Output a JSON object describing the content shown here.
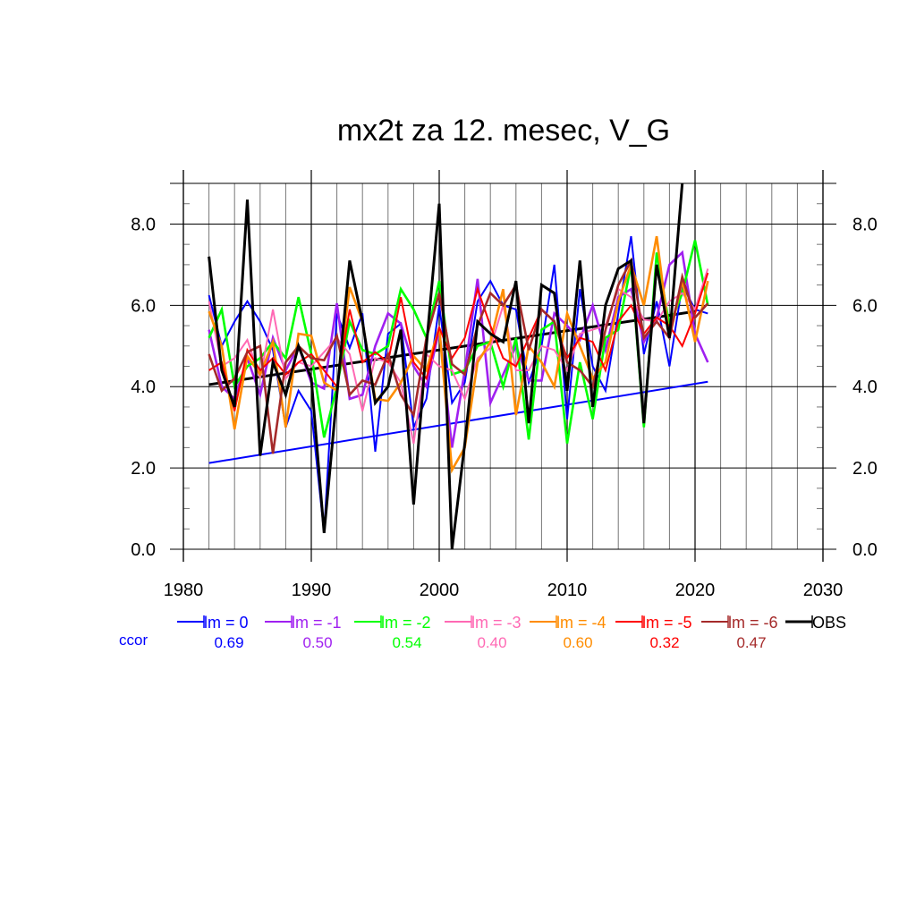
{
  "chart_data": {
    "type": "line",
    "title": "mx2t za 12. mesec, V_G",
    "xlabel": "",
    "ylabel": "",
    "xlim": [
      1980,
      2030
    ],
    "ylim": [
      0,
      9
    ],
    "x_ticks": [
      "1980",
      "1990",
      "2000",
      "2010",
      "2020",
      "2030"
    ],
    "y_ticks_left": [
      "0.0",
      "2.0",
      "4.0",
      "6.0",
      "8.0"
    ],
    "y_ticks_right": [
      "0.0",
      "2.0",
      "4.0",
      "6.0",
      "8.0"
    ],
    "grid": true,
    "legend_position": "bottom",
    "x": [
      1982,
      1983,
      1984,
      1985,
      1986,
      1987,
      1988,
      1989,
      1990,
      1991,
      1992,
      1993,
      1994,
      1995,
      1996,
      1997,
      1998,
      1999,
      2000,
      2001,
      2002,
      2003,
      2004,
      2005,
      2006,
      2007,
      2008,
      2009,
      2010,
      2011,
      2012,
      2013,
      2014,
      2015,
      2016,
      2017,
      2018,
      2019,
      2020,
      2021
    ],
    "series": [
      {
        "name": "lm = 0",
        "color": "#0000ff",
        "ccor": "0.69",
        "values": [
          6.25,
          5.0,
          5.6,
          6.1,
          5.6,
          4.9,
          3.0,
          3.9,
          3.4,
          0.4,
          5.8,
          4.95,
          5.8,
          2.4,
          5.3,
          5.55,
          3.0,
          3.7,
          6.0,
          3.6,
          4.1,
          6.1,
          6.6,
          6.0,
          5.9,
          4.1,
          5.0,
          7.0,
          3.2,
          6.4,
          4.5,
          3.9,
          5.8,
          7.7,
          4.8,
          6.1,
          4.5,
          6.5,
          5.9,
          5.8
        ]
      },
      {
        "name": "lm = -1",
        "color": "#a020f0",
        "ccor": "0.50",
        "values": [
          5.4,
          4.0,
          3.7,
          4.7,
          3.8,
          5.2,
          4.4,
          5.0,
          4.1,
          3.95,
          6.05,
          3.7,
          3.8,
          5.0,
          5.8,
          5.55,
          4.5,
          4.0,
          5.4,
          2.5,
          4.4,
          6.65,
          3.6,
          4.3,
          5.0,
          4.15,
          4.15,
          5.8,
          5.5,
          5.15,
          6.0,
          4.9,
          6.2,
          6.4,
          5.1,
          5.7,
          7.0,
          7.3,
          5.3,
          4.6
        ]
      },
      {
        "name": "lm = -2",
        "color": "#00ff00",
        "ccor": "0.54",
        "values": [
          5.2,
          5.9,
          4.0,
          4.5,
          4.7,
          5.1,
          4.7,
          6.2,
          4.8,
          2.75,
          4.0,
          5.6,
          4.9,
          4.8,
          5.0,
          6.4,
          5.9,
          5.2,
          6.6,
          4.3,
          4.4,
          5.0,
          5.1,
          4.0,
          5.2,
          2.7,
          5.4,
          5.6,
          2.6,
          4.6,
          3.2,
          5.2,
          5.4,
          7.0,
          3.0,
          7.3,
          5.5,
          6.3,
          7.6,
          6.0
        ]
      },
      {
        "name": "lm = -3",
        "color": "#ff69b4",
        "ccor": "0.40",
        "values": [
          6.1,
          4.5,
          4.7,
          5.15,
          4.2,
          5.9,
          4.2,
          4.6,
          4.5,
          4.85,
          5.2,
          4.8,
          3.4,
          4.7,
          4.6,
          4.1,
          2.6,
          4.8,
          4.5,
          4.4,
          3.7,
          4.7,
          4.95,
          6.0,
          4.4,
          4.4,
          5.0,
          4.9,
          4.4,
          5.3,
          5.4,
          5.5,
          6.4,
          6.2,
          5.65,
          5.6,
          6.1,
          6.3,
          5.9,
          6.9
        ]
      },
      {
        "name": "lm = -4",
        "color": "#ff8c00",
        "ccor": "0.60",
        "values": [
          5.85,
          5.0,
          2.95,
          4.75,
          4.3,
          5.1,
          3.0,
          5.3,
          5.25,
          4.1,
          3.9,
          6.45,
          5.6,
          3.7,
          3.65,
          4.1,
          4.75,
          4.4,
          5.45,
          1.95,
          2.5,
          4.6,
          5.1,
          6.4,
          3.3,
          5.0,
          4.6,
          4.0,
          5.8,
          5.0,
          4.2,
          4.6,
          6.1,
          7.0,
          6.0,
          7.7,
          5.2,
          6.6,
          5.1,
          6.6
        ]
      },
      {
        "name": "lm = -5",
        "color": "#ff0000",
        "ccor": "0.32",
        "values": [
          4.4,
          4.6,
          3.4,
          4.9,
          4.4,
          4.7,
          4.3,
          4.6,
          4.8,
          4.4,
          4.0,
          5.9,
          4.6,
          4.85,
          4.6,
          6.2,
          4.6,
          4.2,
          5.45,
          4.7,
          5.2,
          6.4,
          5.5,
          4.7,
          4.5,
          5.2,
          5.9,
          5.6,
          4.7,
          5.2,
          5.1,
          4.4,
          5.6,
          6.0,
          5.3,
          5.7,
          5.5,
          5.0,
          5.8,
          6.8
        ]
      },
      {
        "name": "lm = -6",
        "color": "#a52a2a",
        "ccor": "0.47",
        "values": [
          4.8,
          3.9,
          4.2,
          4.85,
          5.0,
          2.35,
          4.6,
          5.0,
          4.7,
          4.65,
          5.25,
          3.8,
          4.15,
          4.05,
          4.8,
          3.8,
          3.3,
          5.2,
          6.3,
          4.55,
          4.3,
          5.5,
          6.3,
          6.0,
          6.5,
          4.9,
          5.9,
          5.6,
          4.6,
          4.4,
          4.0,
          5.4,
          6.5,
          7.1,
          5.2,
          5.6,
          5.2,
          6.7,
          5.7,
          6.05
        ]
      },
      {
        "name": "OBS",
        "color": "#000000",
        "ccor": "",
        "values": [
          7.2,
          4.4,
          3.5,
          8.6,
          2.3,
          4.6,
          3.8,
          5.0,
          4.2,
          0.4,
          3.8,
          7.1,
          5.6,
          3.6,
          4.0,
          5.4,
          1.1,
          5.0,
          8.5,
          0.0,
          2.6,
          5.6,
          5.3,
          5.1,
          6.6,
          3.1,
          6.5,
          6.3,
          3.9,
          7.1,
          3.5,
          6.0,
          6.9,
          7.1,
          3.1,
          7.0,
          5.2,
          9.0,
          null,
          null
        ]
      }
    ],
    "trend_lines": [
      {
        "name": "lm = 0 trend",
        "color": "#0000ff",
        "x": [
          1982,
          2021
        ],
        "values": [
          2.12,
          4.12
        ]
      },
      {
        "name": "OBS trend",
        "color": "#000000",
        "x": [
          1982,
          2020
        ],
        "values": [
          4.05,
          5.85
        ]
      }
    ]
  },
  "legend": {
    "ccor_label": "ccor",
    "ccor_color": "#0000ff"
  }
}
